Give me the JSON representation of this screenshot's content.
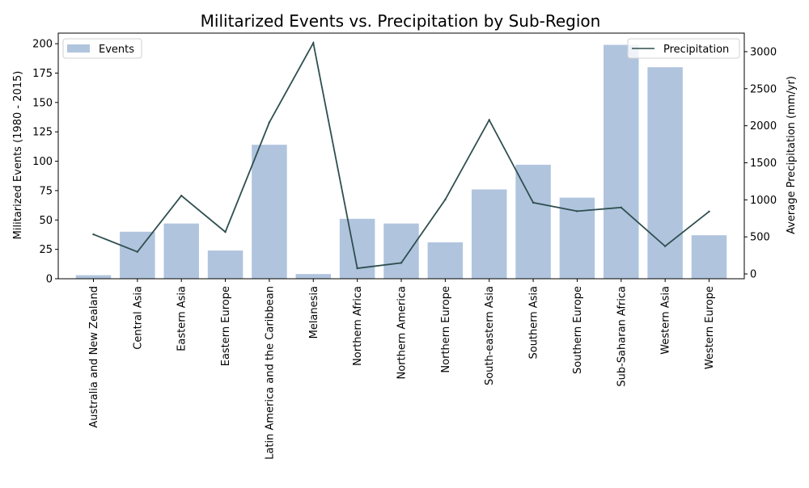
{
  "chart_data": {
    "type": "bar",
    "title": "Militarized Events vs. Precipitation by Sub-Region",
    "xlabel": "",
    "ylabel": "Militarized Events (1980 - 2015)",
    "y2label": "Average Precipitation (mm/yr)",
    "categories": [
      "Australia and New Zealand",
      "Central Asia",
      "Eastern Asia",
      "Eastern Europe",
      "Latin America and the Caribbean",
      "Melanesia",
      "Northern Africa",
      "Northern America",
      "Northern Europe",
      "South-eastern Asia",
      "Southern Asia",
      "Southern Europe",
      "Sub-Saharan Africa",
      "Western Asia",
      "Western Europe"
    ],
    "series": [
      {
        "name": "Events",
        "type": "bar",
        "axis": "left",
        "color": "#b0c4de",
        "values": [
          3,
          40,
          47,
          24,
          114,
          4,
          51,
          47,
          31,
          76,
          97,
          69,
          199,
          180,
          37
        ]
      },
      {
        "name": "Precipitation",
        "type": "line",
        "axis": "right",
        "color": "#2f4f4f",
        "values": [
          534,
          298,
          1056,
          566,
          2045,
          3117,
          76,
          149,
          1003,
          2078,
          962,
          847,
          897,
          374,
          842
        ]
      }
    ],
    "ylim": [
      0,
      209
    ],
    "y2lim": [
      -65,
      3250
    ],
    "yticks": [
      0,
      25,
      50,
      75,
      100,
      125,
      150,
      175,
      200
    ],
    "y2ticks": [
      0,
      500,
      1000,
      1500,
      2000,
      2500,
      3000
    ],
    "legend_left_position": "upper-left",
    "legend_right_position": "upper-right",
    "grid": false
  }
}
